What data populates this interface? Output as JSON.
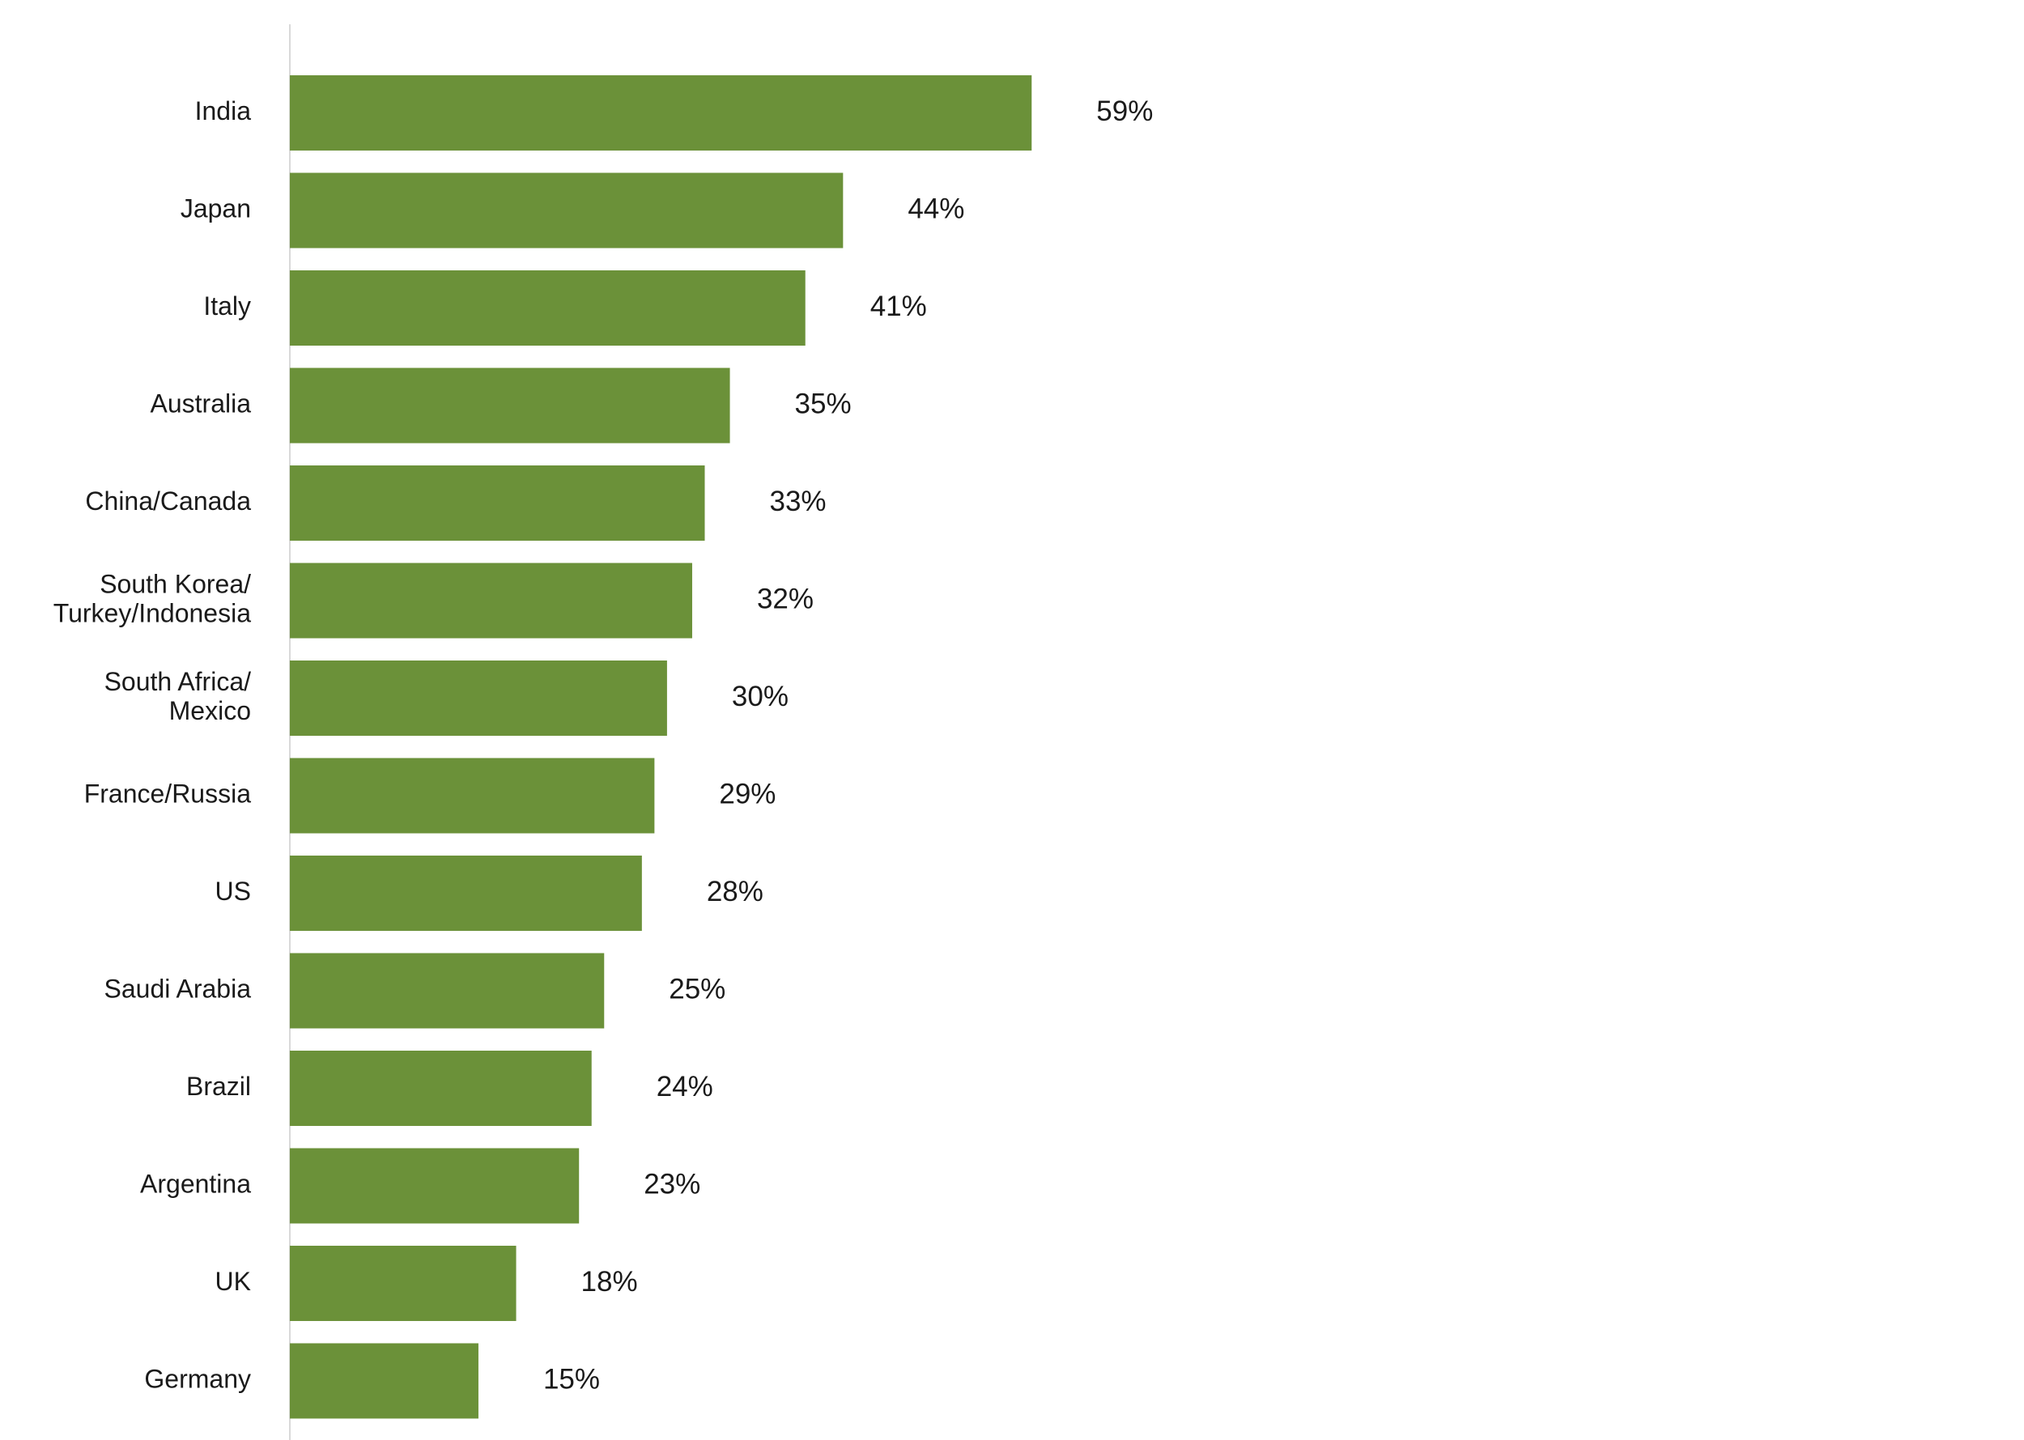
{
  "chart_data": {
    "type": "bar",
    "orientation": "horizontal",
    "categories": [
      "India",
      "Japan",
      "Italy",
      "Australia",
      "China/Canada",
      "South Korea/ Turkey/Indonesia",
      "South Africa/ Mexico",
      "France/Russia",
      "US",
      "Saudi Arabia",
      "Brazil",
      "Argentina",
      "UK",
      "Germany"
    ],
    "category_lines": [
      [
        "India"
      ],
      [
        "Japan"
      ],
      [
        "Italy"
      ],
      [
        "Australia"
      ],
      [
        "China/Canada"
      ],
      [
        "South Korea/",
        "Turkey/Indonesia"
      ],
      [
        "South Africa/",
        "Mexico"
      ],
      [
        "France/Russia"
      ],
      [
        "US"
      ],
      [
        "Saudi Arabia"
      ],
      [
        "Brazil"
      ],
      [
        "Argentina"
      ],
      [
        "UK"
      ],
      [
        "Germany"
      ]
    ],
    "values": [
      59,
      44,
      41,
      35,
      33,
      32,
      30,
      29,
      28,
      25,
      24,
      23,
      18,
      15
    ],
    "value_labels": [
      "59%",
      "44%",
      "41%",
      "35%",
      "33%",
      "32%",
      "30%",
      "29%",
      "28%",
      "25%",
      "24%",
      "23%",
      "18%",
      "15%"
    ],
    "unit": "%",
    "bar_color": "#6b9139",
    "axis_color": "#d9d9d9",
    "grid": false,
    "legend": "none",
    "title": "",
    "xlabel": "",
    "ylabel": ""
  }
}
